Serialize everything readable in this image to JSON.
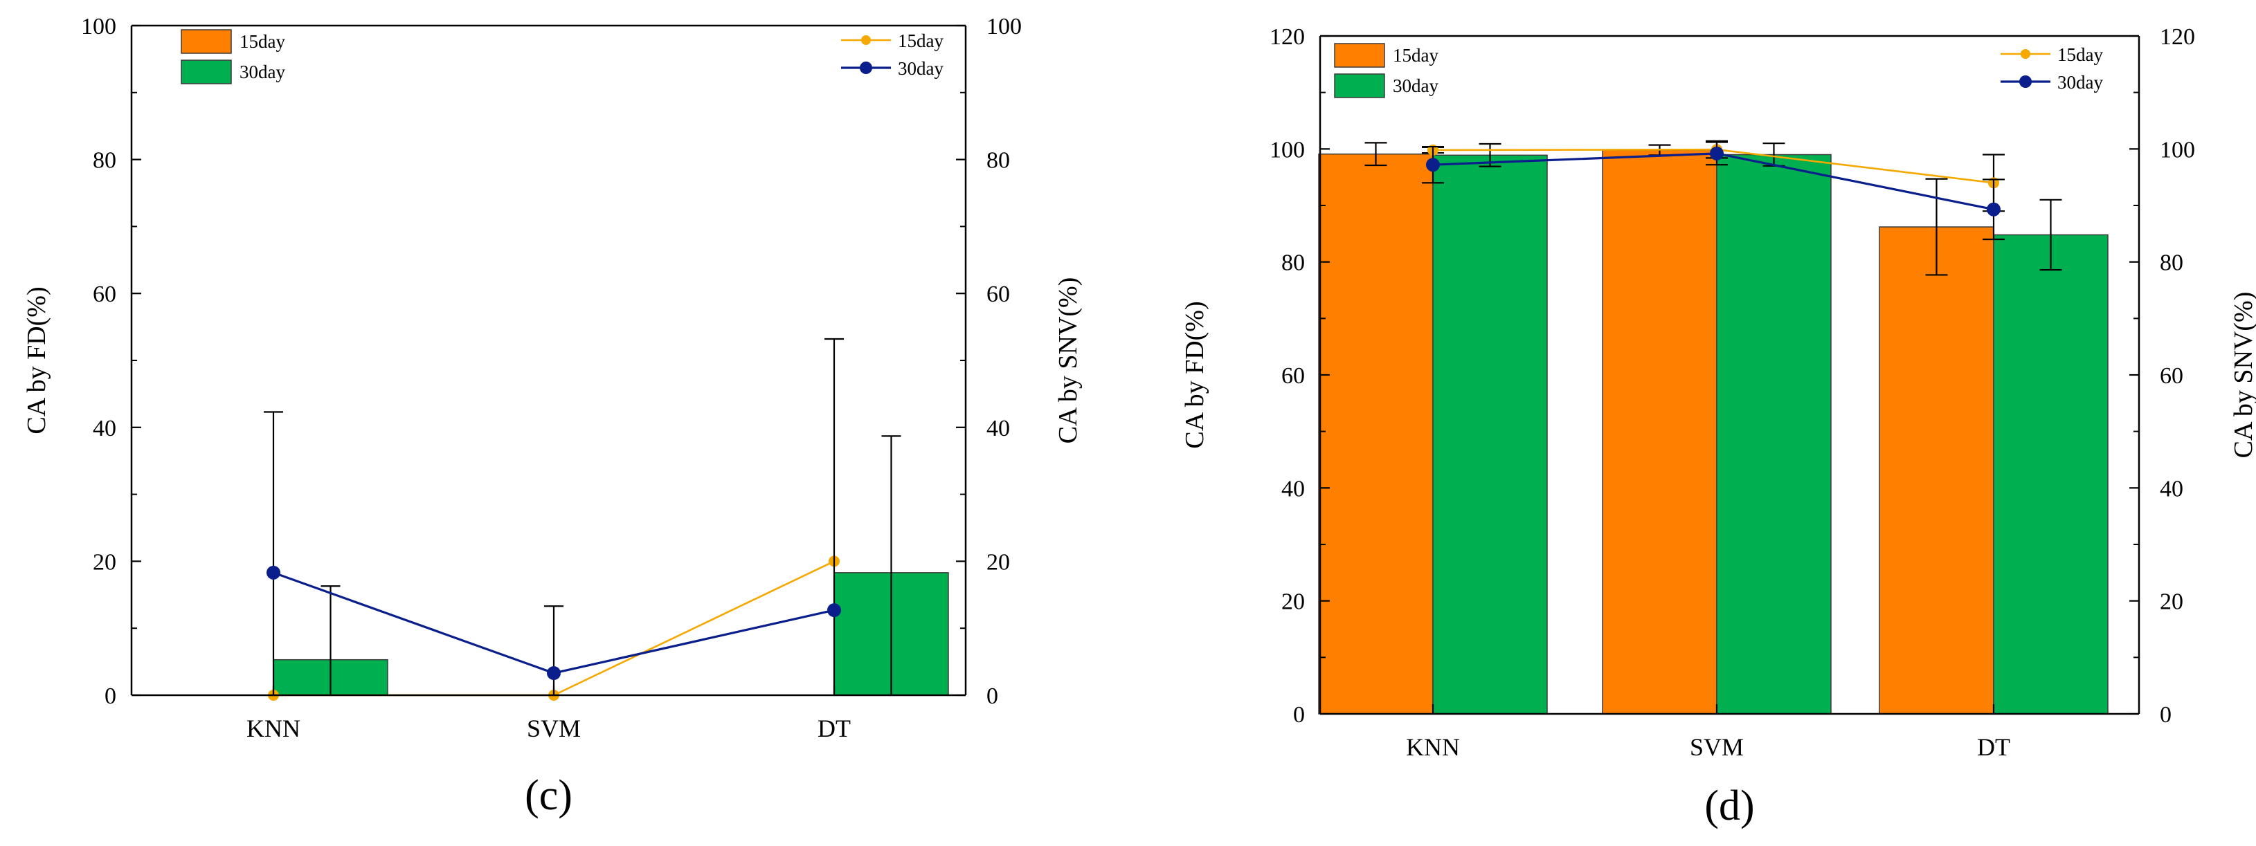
{
  "colors": {
    "bar_15day": "#FF8000",
    "bar_30day": "#00B050",
    "line_15day": "#F5A800",
    "line_30day": "#0A1E8C"
  },
  "chart_data": [
    {
      "type": "bar+line",
      "panel_label": "(c)",
      "categories": [
        "KNN",
        "SVM",
        "DT"
      ],
      "ylabel_left": "CA by FD(%)",
      "ylabel_right": "CA by SNV(%)",
      "ylim_left": [
        0,
        100
      ],
      "ylim_right": [
        0,
        100
      ],
      "yticks_left": [
        "0",
        "20",
        "40",
        "60",
        "80",
        "100"
      ],
      "yticks_right": [
        "0",
        "20",
        "40",
        "60",
        "80",
        "100"
      ],
      "bar_series": [
        {
          "name": "15day",
          "values": [
            0,
            0,
            0
          ],
          "errors": [
            0,
            0,
            0
          ]
        },
        {
          "name": "30day",
          "values": [
            5.3,
            0,
            18.3
          ],
          "errors": [
            11,
            0,
            20.4
          ]
        }
      ],
      "line_series": [
        {
          "name": "15day",
          "values": [
            0,
            0,
            20
          ],
          "errors": [
            0,
            0,
            0
          ]
        },
        {
          "name": "30day",
          "values": [
            18.3,
            3.3,
            12.7
          ],
          "errors": [
            24,
            10,
            40.5
          ]
        }
      ],
      "legend_bar": "top-left",
      "legend_line": "top-right"
    },
    {
      "type": "bar+line",
      "panel_label": "(d)",
      "categories": [
        "KNN",
        "SVM",
        "DT"
      ],
      "ylabel_left": "CA by FD(%)",
      "ylabel_right": "CA by SNV(%)",
      "ylim_left": [
        0,
        120
      ],
      "ylim_right": [
        0,
        120
      ],
      "yticks_left": [
        "0",
        "20",
        "40",
        "60",
        "80",
        "100",
        "120"
      ],
      "yticks_right": [
        "0",
        "20",
        "40",
        "60",
        "80",
        "100",
        "120"
      ],
      "bar_series": [
        {
          "name": "15day",
          "values": [
            99.1,
            99.8,
            86.2
          ],
          "errors": [
            2,
            0.9,
            8.5
          ]
        },
        {
          "name": "30day",
          "values": [
            98.9,
            99,
            84.8
          ],
          "errors": [
            2,
            2,
            6.2
          ]
        }
      ],
      "line_series": [
        {
          "name": "15day",
          "values": [
            99.8,
            99.9,
            94
          ],
          "errors": [
            0.5,
            1.5,
            5
          ]
        },
        {
          "name": "30day",
          "values": [
            97.2,
            99.2,
            89.3
          ],
          "errors": [
            3.2,
            2,
            5.3
          ]
        }
      ],
      "legend_bar": "top-left",
      "legend_line": "top-right"
    }
  ]
}
